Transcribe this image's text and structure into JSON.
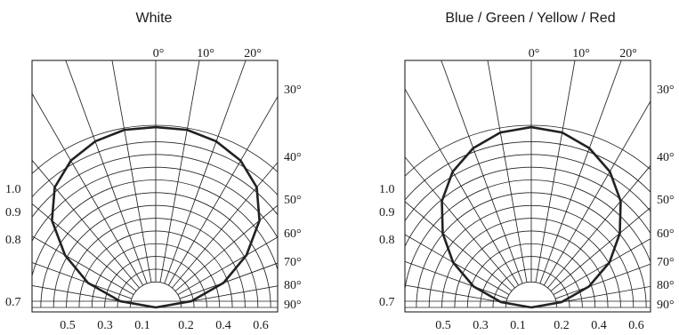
{
  "chart_data": [
    {
      "type": "polar",
      "title": "White",
      "angle_ticks_top": [
        "0°",
        "10°",
        "20°"
      ],
      "angle_ticks_right": [
        "30°",
        "40°",
        "50°",
        "60°",
        "70°",
        "80°",
        "90°"
      ],
      "radial_ticks_left": [
        "1.0",
        "0.9",
        "0.8",
        "0.7"
      ],
      "bottom_ticks_left": [
        "0.5",
        "0.3",
        "0.1"
      ],
      "bottom_ticks_right": [
        "0.2",
        "0.4",
        "0.6"
      ],
      "angle_range_deg": [
        -90,
        90
      ],
      "radius_range": [
        0,
        1
      ],
      "grid": true,
      "series": [
        {
          "angles_deg": [
            -90,
            -80,
            -70,
            -60,
            -50,
            -40,
            -30,
            -20,
            -10,
            0,
            10,
            20,
            30,
            40,
            50,
            60,
            70,
            80,
            90
          ],
          "values": [
            0,
            0.2,
            0.4,
            0.58,
            0.75,
            0.87,
            0.94,
            0.98,
            1.0,
            1.0,
            1.0,
            0.98,
            0.94,
            0.87,
            0.75,
            0.58,
            0.4,
            0.2,
            0
          ],
          "color": "#222222"
        }
      ]
    },
    {
      "type": "polar",
      "title": "Blue / Green / Yellow / Red",
      "angle_ticks_top": [
        "0°",
        "10°",
        "20°"
      ],
      "angle_ticks_right": [
        "30°",
        "40°",
        "50°",
        "60°",
        "70°",
        "80°",
        "90°"
      ],
      "radial_ticks_left": [
        "1.0",
        "0.9",
        "0.8",
        "0.7"
      ],
      "bottom_ticks_left": [
        "0.5",
        "0.3",
        "0.1"
      ],
      "bottom_ticks_right": [
        "0.2",
        "0.4",
        "0.6"
      ],
      "angle_range_deg": [
        -90,
        90
      ],
      "radius_range": [
        0,
        1
      ],
      "grid": true,
      "series": [
        {
          "angles_deg": [
            -90,
            -80,
            -70,
            -60,
            -50,
            -40,
            -30,
            -20,
            -10,
            0,
            10,
            20,
            30,
            40,
            50,
            60,
            70,
            80,
            90
          ],
          "values": [
            0,
            0.17,
            0.34,
            0.5,
            0.64,
            0.77,
            0.87,
            0.94,
            0.985,
            1.0,
            0.985,
            0.94,
            0.87,
            0.77,
            0.64,
            0.5,
            0.34,
            0.17,
            0
          ],
          "color": "#222222"
        }
      ]
    }
  ]
}
